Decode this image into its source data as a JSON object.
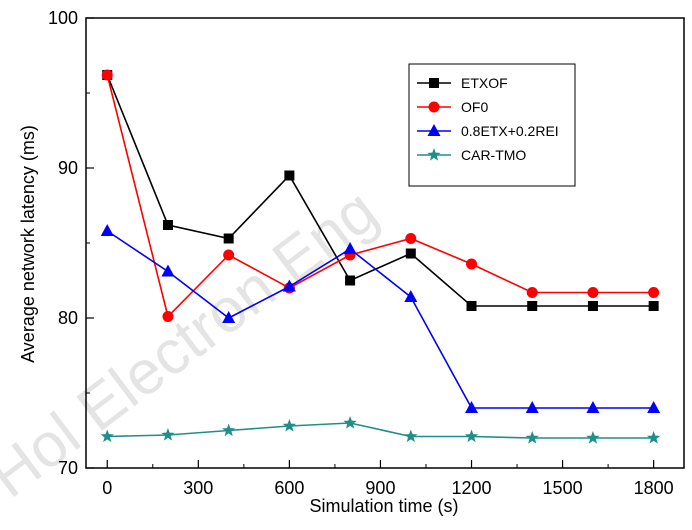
{
  "watermark": "Hol Electron Eng",
  "chart_data": {
    "type": "line",
    "xlabel": "Simulation time (s)",
    "ylabel": "Average network latency (ms)",
    "xlim": [
      -70,
      1900
    ],
    "ylim": [
      70,
      100
    ],
    "xticks": [
      0,
      300,
      600,
      900,
      1200,
      1500,
      1800
    ],
    "yticks": [
      70,
      80,
      90,
      100
    ],
    "x": [
      0,
      200,
      400,
      600,
      800,
      1000,
      1200,
      1400,
      1600,
      1800
    ],
    "legend_position": "top-right",
    "grid": false,
    "series": [
      {
        "name": "ETXOF",
        "color": "#000000",
        "marker": "square",
        "values": [
          96.2,
          86.2,
          85.3,
          89.5,
          82.5,
          84.3,
          80.8,
          80.8,
          80.8,
          80.8
        ]
      },
      {
        "name": "OF0",
        "color": "#ff0000",
        "marker": "circle",
        "values": [
          96.2,
          80.1,
          84.2,
          82.0,
          84.2,
          85.3,
          83.6,
          81.7,
          81.7,
          81.7
        ]
      },
      {
        "name": "0.8ETX+0.2REI",
        "color": "#0000ff",
        "marker": "triangle",
        "values": [
          85.8,
          83.1,
          80.0,
          82.1,
          84.6,
          81.4,
          74.0,
          74.0,
          74.0,
          74.0
        ]
      },
      {
        "name": "CAR-TMO",
        "color": "#1f8f8a",
        "marker": "star",
        "values": [
          72.1,
          72.2,
          72.5,
          72.8,
          73.0,
          72.1,
          72.1,
          72.0,
          72.0,
          72.0
        ]
      }
    ]
  }
}
